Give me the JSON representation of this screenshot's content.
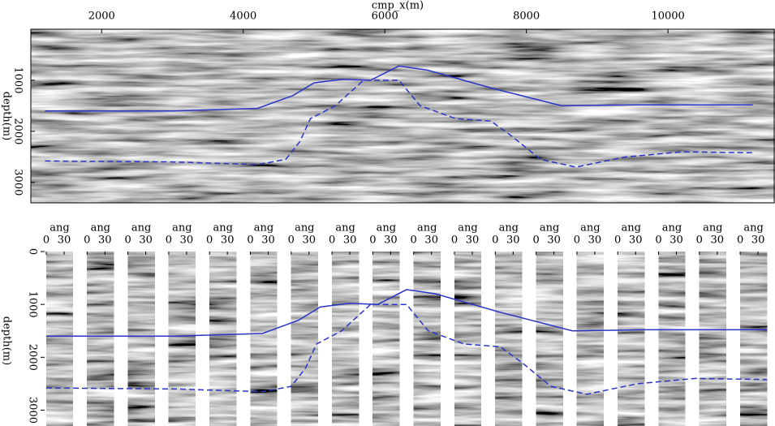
{
  "chart_data": [
    {
      "type": "image",
      "xlabel": "cmp_x(m)",
      "ylabel": "depth(m)",
      "xlim": [
        1000,
        11500
      ],
      "ylim": [
        0,
        3400
      ],
      "xticks": [
        2000,
        4000,
        6000,
        8000,
        10000
      ],
      "yticks": [
        1000,
        2000,
        3000
      ],
      "series": [
        {
          "color": "#2a35c8",
          "dashed": false,
          "x": [
            1200,
            3000,
            4200,
            4700,
            5000,
            5400,
            5800,
            6200,
            6600,
            7500,
            8500,
            9500,
            11200
          ],
          "values": [
            1600,
            1600,
            1550,
            1300,
            1050,
            980,
            1000,
            720,
            800,
            1150,
            1500,
            1480,
            1480
          ]
        },
        {
          "color": "#2a35c8",
          "dashed": true,
          "x": [
            1200,
            3000,
            4200,
            4600,
            4800,
            4950,
            5300,
            5700,
            6200,
            6500,
            7000,
            7500,
            7800,
            8200,
            8700,
            9400,
            10200,
            11200
          ],
          "values": [
            2580,
            2600,
            2650,
            2550,
            2200,
            1750,
            1500,
            1000,
            1000,
            1500,
            1750,
            1800,
            2100,
            2550,
            2700,
            2500,
            2400,
            2420
          ]
        }
      ]
    },
    {
      "type": "gathers",
      "ylabel": "depth(m)",
      "ylim": [
        0,
        3300
      ],
      "yticks": [
        0,
        1000,
        2000,
        3000
      ],
      "gathers": [
        {
          "xlabel": "ang",
          "xticks": [
            0,
            30
          ]
        },
        {
          "xlabel": "ang",
          "xticks": [
            0,
            30
          ]
        },
        {
          "xlabel": "ang",
          "xticks": [
            0,
            30
          ]
        },
        {
          "xlabel": "ang",
          "xticks": [
            0,
            30
          ]
        },
        {
          "xlabel": "ang",
          "xticks": [
            0,
            30
          ]
        },
        {
          "xlabel": "ang",
          "xticks": [
            0,
            30
          ]
        },
        {
          "xlabel": "ang",
          "xticks": [
            0,
            30
          ]
        },
        {
          "xlabel": "ang",
          "xticks": [
            0,
            30
          ]
        },
        {
          "xlabel": "ang",
          "xticks": [
            0,
            30
          ]
        },
        {
          "xlabel": "ang",
          "xticks": [
            0,
            30
          ]
        },
        {
          "xlabel": "ang",
          "xticks": [
            0,
            30
          ]
        },
        {
          "xlabel": "ang",
          "xticks": [
            0,
            30
          ]
        },
        {
          "xlabel": "ang",
          "xticks": [
            0,
            30
          ]
        },
        {
          "xlabel": "ang",
          "xticks": [
            0,
            30
          ]
        },
        {
          "xlabel": "ang",
          "xticks": [
            0,
            30
          ]
        },
        {
          "xlabel": "ang",
          "xticks": [
            0,
            30
          ]
        },
        {
          "xlabel": "ang",
          "xticks": [
            0,
            30
          ]
        },
        {
          "xlabel": "ang",
          "xticks": [
            0,
            30
          ]
        }
      ],
      "xlim": [
        0,
        45
      ]
    }
  ]
}
